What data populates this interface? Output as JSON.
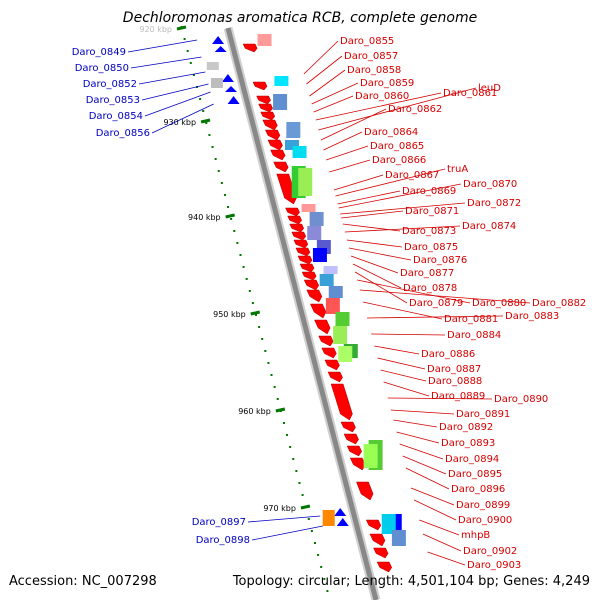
{
  "title": "Dechloromonas aromatica RCB, complete genome",
  "footer": {
    "accession_label": "Accession:",
    "accession": "NC_007298",
    "topology_label": "Topology:",
    "topology": "circular;",
    "length_label": "Length:",
    "length": "4,501,104 bp;",
    "genes_label": "Genes:",
    "genes": "4,249"
  },
  "colors": {
    "forward_label": "#d40000",
    "reverse_label": "#0000c0",
    "backbone": "#888888",
    "forward_gene": "#ff0000",
    "reverse_gene": "#0000ff",
    "tick": "#007700"
  },
  "scale_labels": [
    "920 kbp",
    "930 kbp",
    "940 kbp",
    "950 kbp",
    "960 kbp",
    "970 kbp"
  ],
  "reverse_genes": [
    "Daro_0849",
    "Daro_0850",
    "Daro_0852",
    "Daro_0853",
    "Daro_0854",
    "Daro_0856",
    "Daro_0897",
    "Daro_0898"
  ],
  "forward_genes": [
    "Daro_0855",
    "Daro_0857",
    "Daro_0858",
    "Daro_0859",
    "Daro_0860",
    "Daro_0861",
    "leuD",
    "Daro_0862",
    "Daro_0864",
    "Daro_0865",
    "Daro_0866",
    "Daro_0867",
    "truA",
    "Daro_0869",
    "Daro_0870",
    "Daro_0872",
    "Daro_0871",
    "Daro_0873",
    "Daro_0874",
    "Daro_0875",
    "Daro_0876",
    "Daro_0877",
    "Daro_0878",
    "Daro_0879",
    "Daro_0880",
    "Daro_0882",
    "Daro_0881",
    "Daro_0883",
    "Daro_0884",
    "Daro_0886",
    "Daro_0887",
    "Daro_0888",
    "Daro_0889",
    "Daro_0890",
    "Daro_0891",
    "Daro_0892",
    "Daro_0893",
    "Daro_0894",
    "Daro_0895",
    "Daro_0896",
    "Daro_0899",
    "Daro_0900",
    "mhpB",
    "Daro_0902",
    "Daro_0903"
  ]
}
